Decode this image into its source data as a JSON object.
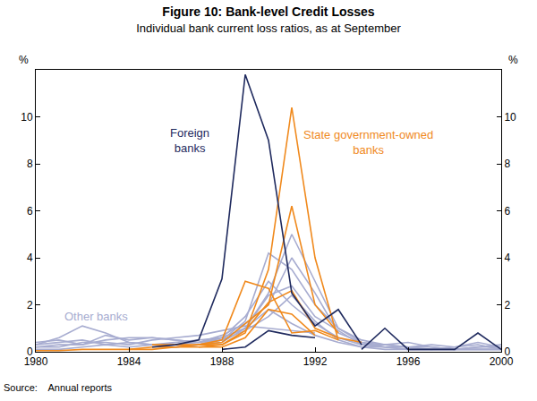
{
  "chart_data": {
    "type": "line",
    "title": "Figure 10: Bank-level Credit Losses",
    "subtitle": "Individual bank current loss ratios, as at September",
    "ylabel": "%",
    "y2label": "%",
    "source": "Source:    Annual reports",
    "grid": false,
    "x": [
      1980,
      1981,
      1982,
      1983,
      1984,
      1985,
      1986,
      1987,
      1988,
      1989,
      1990,
      1991,
      1992,
      1993,
      1994,
      1995,
      1996,
      1997,
      1998,
      1999,
      2000
    ],
    "xlim": [
      1980,
      2000
    ],
    "xticks": [
      1980,
      1984,
      1988,
      1992,
      1996,
      2000
    ],
    "ylim": [
      0,
      12
    ],
    "yticks": [
      0,
      2,
      4,
      6,
      8,
      10
    ],
    "y2lim": [
      0,
      12
    ],
    "y2ticks": [
      0,
      2,
      4,
      6,
      8,
      10
    ],
    "groups": [
      {
        "name": "Other banks",
        "label_lines": [
          "Other banks"
        ],
        "label_x": 1982.6,
        "label_y": 1.5,
        "color": "#a7acd0",
        "series": [
          {
            "values": [
              0.3,
              0.4,
              0.5,
              0.3,
              0.4,
              0.3,
              0.4,
              0.5,
              0.6,
              1.0,
              2.5,
              5.0,
              3.0,
              1.0,
              0.4,
              0.3,
              0.2,
              0.1,
              0.1,
              0.2,
              0.2
            ]
          },
          {
            "values": [
              0.2,
              0.3,
              0.3,
              0.7,
              0.5,
              0.6,
              0.5,
              0.4,
              0.5,
              1.3,
              4.2,
              3.5,
              2.0,
              1.0,
              0.5,
              0.3,
              0.4,
              0.2,
              0.1,
              0.1,
              0.1
            ]
          },
          {
            "values": [
              0.4,
              0.5,
              0.3,
              0.5,
              0.6,
              0.6,
              0.5,
              0.4,
              0.7,
              1.2,
              2.0,
              4.0,
              2.5,
              0.8,
              0.4,
              0.2,
              0.2,
              0.3,
              0.2,
              0.4,
              0.2
            ]
          },
          {
            "values": [
              0.1,
              0.1,
              0.2,
              0.3,
              0.2,
              0.3,
              0.2,
              0.3,
              0.4,
              1.0,
              2.4,
              2.8,
              1.5,
              0.9,
              0.3,
              0.2,
              0.1,
              0.1,
              0.2,
              0.3,
              0.1
            ]
          },
          {
            "values": [
              0.3,
              0.6,
              1.1,
              0.8,
              0.4,
              0.3,
              0.3,
              0.4,
              0.6,
              1.5,
              3.0,
              2.0,
              1.2,
              0.6,
              0.3,
              0.3,
              0.2,
              0.2,
              0.1,
              0.2,
              0.3
            ]
          },
          {
            "values": [
              null,
              null,
              null,
              null,
              null,
              null,
              0.2,
              0.3,
              0.5,
              0.9,
              1.5,
              2.4,
              1.3,
              0.5,
              0.2,
              0.1,
              0.1,
              0.1,
              0.1,
              0.1,
              0.1
            ]
          },
          {
            "values": [
              0.2,
              0.2,
              0.4,
              0.4,
              0.3,
              0.5,
              0.6,
              0.7,
              0.9,
              1.1,
              1.0,
              0.9,
              0.8,
              null,
              null,
              null,
              null,
              null,
              null,
              null,
              null
            ]
          },
          {
            "values": [
              null,
              null,
              null,
              null,
              null,
              null,
              null,
              0.3,
              0.6,
              1.0,
              1.8,
              1.2,
              0.7,
              0.4,
              0.2,
              0.2,
              0.1,
              0.1,
              0.1,
              0.1,
              0.1
            ]
          }
        ]
      },
      {
        "name": "State government-owned banks",
        "label_lines": [
          "State government-owned",
          "banks"
        ],
        "label_x": 1994.3,
        "label_y": 8.9,
        "color": "#f0891c",
        "series": [
          {
            "values": [
              0.05,
              0.05,
              0.1,
              0.1,
              0.1,
              0.2,
              0.2,
              0.3,
              0.3,
              0.8,
              3.5,
              10.4,
              4.0,
              0.5,
              null,
              null,
              null,
              null,
              null,
              null,
              null
            ]
          },
          {
            "values": [
              null,
              null,
              null,
              null,
              null,
              0.3,
              0.3,
              0.3,
              0.4,
              1.2,
              2.0,
              6.2,
              2.0,
              0.8,
              null,
              null,
              null,
              null,
              null,
              null,
              null
            ]
          },
          {
            "values": [
              null,
              null,
              null,
              null,
              null,
              null,
              null,
              0.3,
              0.5,
              3.0,
              2.7,
              0.8,
              0.9,
              0.5,
              null,
              null,
              null,
              null,
              null,
              null,
              null
            ]
          },
          {
            "values": [
              null,
              null,
              null,
              null,
              null,
              null,
              null,
              0.2,
              0.3,
              0.9,
              2.1,
              2.6,
              1.0,
              0.6,
              0.4,
              null,
              null,
              null,
              null,
              null,
              null
            ]
          },
          {
            "values": [
              null,
              null,
              null,
              null,
              0.1,
              0.1,
              0.2,
              0.2,
              0.2,
              0.6,
              1.8,
              1.6,
              0.7,
              null,
              null,
              null,
              null,
              null,
              null,
              null,
              null
            ]
          }
        ]
      },
      {
        "name": "Foreign banks",
        "label_lines": [
          "Foreign",
          "banks"
        ],
        "label_x": 1986.6,
        "label_y": 9.0,
        "color": "#1f2a5e",
        "series": [
          {
            "values": [
              null,
              null,
              null,
              null,
              null,
              0.2,
              0.3,
              0.5,
              3.1,
              11.8,
              9.0,
              2.5,
              1.1,
              1.8,
              0.3,
              null,
              null,
              null,
              null,
              null,
              null
            ]
          },
          {
            "values": [
              null,
              null,
              null,
              null,
              null,
              null,
              null,
              null,
              0.1,
              0.2,
              0.9,
              0.7,
              0.6,
              null,
              null,
              null,
              null,
              null,
              null,
              null,
              null
            ]
          },
          {
            "values": [
              null,
              null,
              null,
              null,
              null,
              null,
              null,
              null,
              null,
              null,
              null,
              null,
              null,
              null,
              0.1,
              1.0,
              0.1,
              0.1,
              0.1,
              0.8,
              0.1
            ]
          }
        ]
      }
    ]
  }
}
